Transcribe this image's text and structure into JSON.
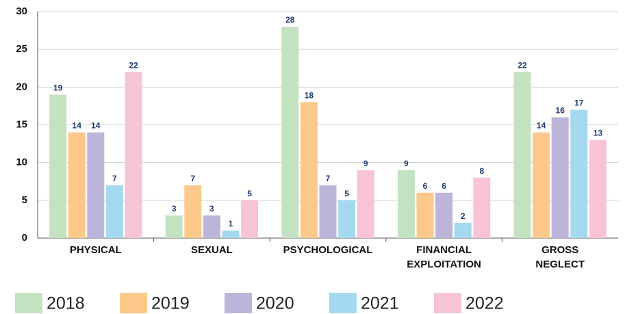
{
  "chart_data": {
    "type": "bar",
    "categories": [
      "PHYSICAL",
      "SEXUAL",
      "PSYCHOLOGICAL",
      "FINANCIAL EXPLOITATION",
      "GROSS NEGLECT"
    ],
    "series": [
      {
        "name": "2018",
        "color": "#c3e2c2",
        "values": [
          19,
          3,
          28,
          9,
          22
        ]
      },
      {
        "name": "2019",
        "color": "#fdc98b",
        "values": [
          14,
          7,
          18,
          6,
          14
        ]
      },
      {
        "name": "2020",
        "color": "#bdb4da",
        "values": [
          14,
          3,
          7,
          6,
          16
        ]
      },
      {
        "name": "2021",
        "color": "#a5d9ef",
        "values": [
          7,
          1,
          5,
          2,
          17
        ]
      },
      {
        "name": "2022",
        "color": "#f8c3d7",
        "values": [
          22,
          5,
          9,
          8,
          13
        ]
      }
    ],
    "ylim": [
      0,
      30
    ],
    "yticks": [
      0,
      5,
      10,
      15,
      20,
      25,
      30
    ],
    "grid": true,
    "legend": "bottom"
  }
}
